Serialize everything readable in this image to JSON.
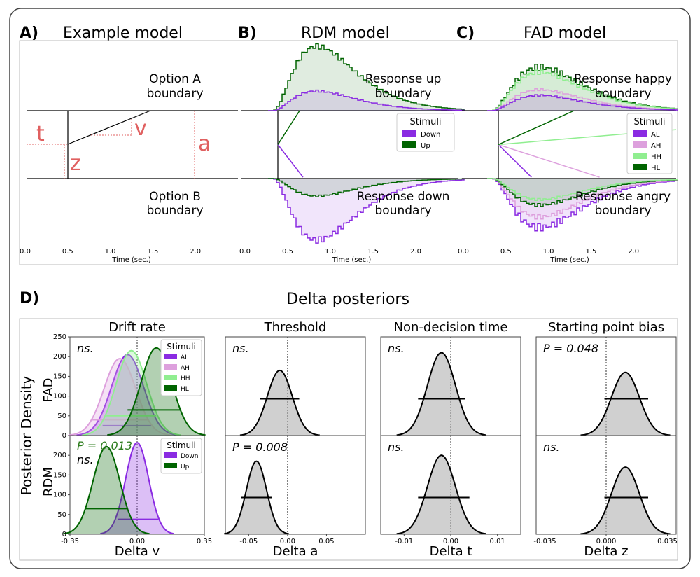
{
  "panel_labels": {
    "a": "A)",
    "b": "B)",
    "c": "C)",
    "d": "D)"
  },
  "titles": {
    "a": "Example model",
    "b": "RDM model",
    "c": "FAD model",
    "delta": "Delta posteriors",
    "cols": [
      "Drift rate",
      "Threshold",
      "Non-decision time",
      "Starting point bias"
    ]
  },
  "row_labels": [
    "FAD",
    "RDM"
  ],
  "ylabel": "Posterior Density",
  "xlabels": [
    "Delta v",
    "Delta a",
    "Delta t",
    "Delta z"
  ],
  "time_xlabel": "Time (sec.)",
  "panel_a": {
    "upper": [
      "Option A",
      "boundary"
    ],
    "lower": [
      "Option B",
      "boundary"
    ],
    "params": {
      "t": "t",
      "z": "z",
      "v": "v",
      "a": "a"
    },
    "accent": "#e06060"
  },
  "panel_b": {
    "upper": [
      "Response up",
      "boundary"
    ],
    "lower": [
      "Response down",
      "boundary"
    ],
    "legend_title": "Stimuli",
    "legend": [
      {
        "name": "Down",
        "color": "#8a2be2"
      },
      {
        "name": "Up",
        "color": "#006400"
      }
    ]
  },
  "panel_c": {
    "upper": [
      "Response happy",
      "boundary"
    ],
    "lower": [
      "Response angry",
      "boundary"
    ],
    "legend_title": "Stimuli",
    "legend": [
      {
        "name": "AL",
        "color": "#8a2be2"
      },
      {
        "name": "AH",
        "color": "#dda0dd"
      },
      {
        "name": "HH",
        "color": "#90ee90"
      },
      {
        "name": "HL",
        "color": "#006400"
      }
    ]
  },
  "annotations": {
    "fad": [
      "ns.",
      "ns.",
      "ns.",
      "P = 0.048"
    ],
    "rdm": [
      "ns.",
      "P = 0.008",
      "ns.",
      "ns."
    ],
    "rdm_drift_extra": "P = 0.013",
    "rdm_drift_extra_color": "#2e7d1e"
  },
  "chart_data": [
    {
      "type": "line",
      "panel": "A",
      "x_ticks": [
        "0.0",
        "0.5",
        "1.0",
        "1.5",
        "2.0"
      ],
      "xlim": [
        0,
        2.5
      ],
      "xlabel": "Time (sec.)",
      "grid": false
    },
    {
      "type": "line",
      "panel": "B",
      "x_ticks": [
        "0.0",
        "0.5",
        "1.0",
        "1.5",
        "2.0"
      ],
      "xlim": [
        0,
        2.5
      ],
      "xlabel": "Time (sec.)",
      "legend_placement": "right",
      "series": [
        {
          "name": "Down",
          "color": "#8a2be2",
          "drift_end": [
            0.68,
            -0.48
          ]
        },
        {
          "name": "Up",
          "color": "#006400",
          "drift_end": [
            0.64,
            0.5
          ]
        }
      ]
    },
    {
      "type": "line",
      "panel": "C",
      "x_ticks": [
        "0.0",
        "0.5",
        "1.0",
        "1.5",
        "2.0"
      ],
      "xlim": [
        0,
        2.5
      ],
      "xlabel": "Time (sec.)",
      "legend_placement": "right",
      "series": [
        {
          "name": "AL",
          "color": "#8a2be2",
          "drift_end": [
            0.8,
            -0.48
          ]
        },
        {
          "name": "AH",
          "color": "#dda0dd",
          "drift_end": [
            1.6,
            -0.48
          ]
        },
        {
          "name": "HH",
          "color": "#90ee90",
          "drift_end": [
            2.5,
            0.22
          ]
        },
        {
          "name": "HL",
          "color": "#006400",
          "drift_end": [
            1.3,
            0.5
          ]
        }
      ]
    },
    {
      "type": "area",
      "panel": "D-FAD-drift",
      "xlim": [
        -0.35,
        0.35
      ],
      "x_ticks": [],
      "ylim": [
        0,
        250
      ],
      "y_ticks": [
        "0",
        "50",
        "100",
        "150",
        "200",
        "250"
      ],
      "legend_title": "Stimuli",
      "legend_placement": "top-right",
      "series": [
        {
          "name": "AL",
          "color": "#8a2be2",
          "mean": -0.05,
          "sd": 0.083,
          "peak": 205,
          "hdi": [
            -0.18,
            0.08
          ],
          "hdi_y": 25
        },
        {
          "name": "AH",
          "color": "#dda0dd",
          "mean": -0.09,
          "sd": 0.083,
          "peak": 195,
          "hdi": [
            -0.24,
            0.06
          ],
          "hdi_y": 40
        },
        {
          "name": "HH",
          "color": "#90ee90",
          "mean": -0.03,
          "sd": 0.08,
          "peak": 215,
          "hdi": [
            -0.16,
            0.1
          ],
          "hdi_y": 50
        },
        {
          "name": "HL",
          "color": "#006400",
          "mean": 0.1,
          "sd": 0.08,
          "peak": 222,
          "hdi": [
            -0.05,
            0.23
          ],
          "hdi_y": 65
        }
      ]
    },
    {
      "type": "area",
      "panel": "D-FAD-threshold",
      "xlim": [
        -0.08,
        0.1
      ],
      "mean": -0.01,
      "sd": 0.016,
      "peak": 165,
      "hdi": [
        -0.035,
        0.015
      ],
      "hdi_y": 93,
      "color": "#aaaaaa",
      "ylim": [
        0,
        250
      ]
    },
    {
      "type": "area",
      "panel": "D-FAD-ndt",
      "xlim": [
        -0.015,
        0.015
      ],
      "mean": -0.002,
      "sd": 0.003,
      "peak": 210,
      "hdi": [
        -0.007,
        0.003
      ],
      "hdi_y": 93,
      "color": "#aaaaaa",
      "ylim": [
        0,
        250
      ]
    },
    {
      "type": "area",
      "panel": "D-FAD-spb",
      "xlim": [
        -0.04,
        0.04
      ],
      "mean": 0.011,
      "sd": 0.008,
      "peak": 160,
      "hdi": [
        -0.001,
        0.024
      ],
      "hdi_y": 93,
      "color": "#aaaaaa",
      "ylim": [
        0,
        250
      ]
    },
    {
      "type": "area",
      "panel": "D-RDM-drift",
      "xlim": [
        -0.35,
        0.35
      ],
      "x_ticks": [
        "-0.35",
        "0.00",
        "0.35"
      ],
      "ylim": [
        0,
        250
      ],
      "y_ticks": [
        "0",
        "50",
        "100",
        "150",
        "200"
      ],
      "legend_title": "Stimuli",
      "legend_placement": "top-right",
      "series": [
        {
          "name": "Down",
          "color": "#8a2be2",
          "mean": 0.0,
          "sd": 0.06,
          "peak": 232,
          "hdi": [
            -0.1,
            0.11
          ],
          "hdi_y": 38
        },
        {
          "name": "Up",
          "color": "#006400",
          "mean": -0.16,
          "sd": 0.07,
          "peak": 222,
          "hdi": [
            -0.27,
            -0.05
          ],
          "hdi_y": 65
        }
      ]
    },
    {
      "type": "area",
      "panel": "D-RDM-threshold",
      "xlim": [
        -0.08,
        0.1
      ],
      "x_ticks": [
        "-0.05",
        "0.00",
        "0.05"
      ],
      "mean": -0.04,
      "sd": 0.013,
      "peak": 185,
      "hdi": [
        -0.06,
        -0.02
      ],
      "hdi_y": 93,
      "color": "#aaaaaa",
      "ylim": [
        0,
        250
      ]
    },
    {
      "type": "area",
      "panel": "D-RDM-ndt",
      "xlim": [
        -0.015,
        0.015
      ],
      "x_ticks": [
        "-0.01",
        "0.00",
        "0.01"
      ],
      "mean": -0.002,
      "sd": 0.003,
      "peak": 200,
      "hdi": [
        -0.007,
        0.004
      ],
      "hdi_y": 93,
      "color": "#aaaaaa",
      "ylim": [
        0,
        250
      ]
    },
    {
      "type": "area",
      "panel": "D-RDM-spb",
      "xlim": [
        -0.04,
        0.04
      ],
      "x_ticks": [
        "-0.035",
        "0.000",
        "0.035"
      ],
      "mean": 0.011,
      "sd": 0.008,
      "peak": 170,
      "hdi": [
        -0.001,
        0.024
      ],
      "hdi_y": 93,
      "color": "#aaaaaa",
      "ylim": [
        0,
        250
      ]
    }
  ]
}
